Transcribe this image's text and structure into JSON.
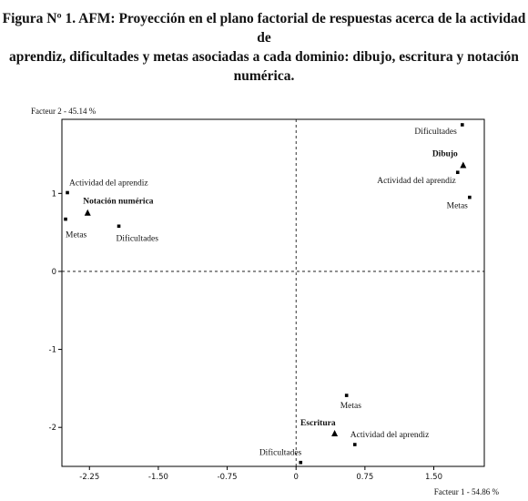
{
  "title_line1": "Figura Nº 1. AFM: Proyección en el plano factorial de respuestas acerca de la actividad de",
  "title_line2": "aprendiz, dificultades y metas asociadas a cada dominio: dibujo, escritura y notación numérica.",
  "chart_data": {
    "type": "scatter",
    "ylabel": "Facteur 2  -  45.14 %",
    "xlabel": "Facteur 1  -  54.86 %",
    "xlim": [
      -2.55,
      2.05
    ],
    "ylim": [
      -2.5,
      1.95
    ],
    "x_ticks": [
      {
        "value": -2.25,
        "label": "-2.25"
      },
      {
        "value": -1.5,
        "label": "-1.50"
      },
      {
        "value": -0.75,
        "label": "-0.75"
      },
      {
        "value": 0,
        "label": "0"
      },
      {
        "value": 0.75,
        "label": "0.75"
      },
      {
        "value": 1.5,
        "label": "1.50"
      }
    ],
    "y_ticks": [
      {
        "value": 1,
        "label": "1"
      },
      {
        "value": 0,
        "label": "0"
      },
      {
        "value": -1,
        "label": "-1"
      },
      {
        "value": -2,
        "label": "-2"
      }
    ],
    "points": [
      {
        "label": "Dificultades",
        "x": 1.81,
        "y": 1.88,
        "marker": "square",
        "bold": false,
        "anchor": "end",
        "dx": -6,
        "dy": 10
      },
      {
        "label": "Dibujo",
        "x": 1.82,
        "y": 1.36,
        "marker": "triangle",
        "bold": true,
        "anchor": "end",
        "dx": -6,
        "dy": -10
      },
      {
        "label": "Actividad del aprendiz",
        "x": 1.76,
        "y": 1.27,
        "marker": "square",
        "bold": false,
        "anchor": "end",
        "dx": -2,
        "dy": 12
      },
      {
        "label": "Metas",
        "x": 1.89,
        "y": 0.95,
        "marker": "square",
        "bold": false,
        "anchor": "end",
        "dx": -2,
        "dy": 12
      },
      {
        "label": "Actividad del aprendiz",
        "x": -2.49,
        "y": 1.01,
        "marker": "square",
        "bold": false,
        "anchor": "start",
        "dx": 2,
        "dy": -8
      },
      {
        "label": "Notación numérica",
        "x": -2.27,
        "y": 0.75,
        "marker": "triangle",
        "bold": true,
        "anchor": "start",
        "dx": -5,
        "dy": -10
      },
      {
        "label": "Metas",
        "x": -2.51,
        "y": 0.67,
        "marker": "square",
        "bold": false,
        "anchor": "start",
        "dx": 0,
        "dy": 20
      },
      {
        "label": "Dificultades",
        "x": -1.93,
        "y": 0.58,
        "marker": "square",
        "bold": false,
        "anchor": "start",
        "dx": -3,
        "dy": 16
      },
      {
        "label": "Metas",
        "x": 0.55,
        "y": -1.59,
        "marker": "square",
        "bold": false,
        "anchor": "start",
        "dx": -7,
        "dy": 14
      },
      {
        "label": "Escritura",
        "x": 0.42,
        "y": -2.08,
        "marker": "triangle",
        "bold": true,
        "anchor": "end",
        "dx": 1,
        "dy": -9
      },
      {
        "label": "Actividad del aprendiz",
        "x": 0.64,
        "y": -2.22,
        "marker": "square",
        "bold": false,
        "anchor": "start",
        "dx": -5,
        "dy": -8
      },
      {
        "label": "Dificultades",
        "x": 0.05,
        "y": -2.45,
        "marker": "square",
        "bold": false,
        "anchor": "end",
        "dx": 1,
        "dy": -8
      }
    ]
  }
}
